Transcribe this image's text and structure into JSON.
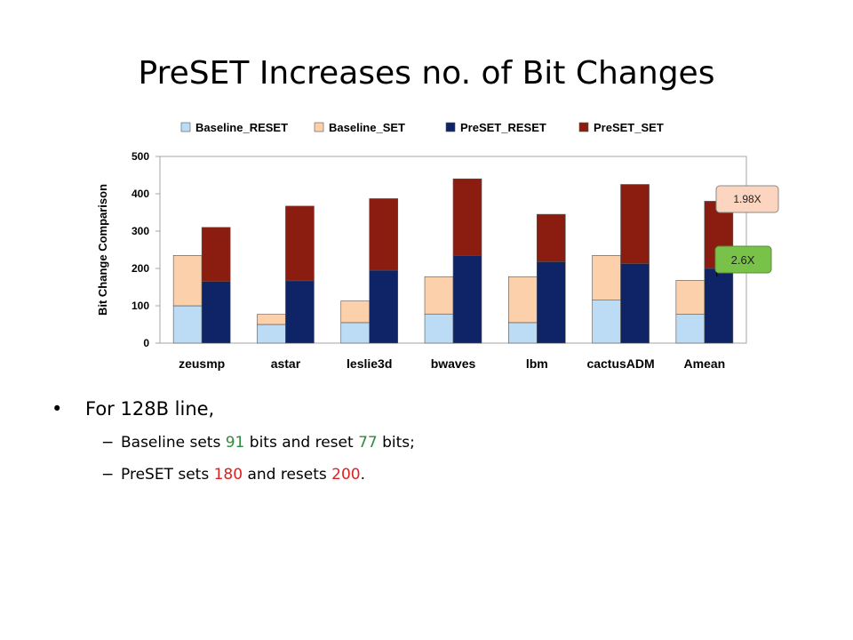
{
  "slide": {
    "title": "PreSET Increases no. of Bit Changes",
    "bullet": "For 128B line,",
    "sub1": {
      "t1": "Baseline sets ",
      "v1": "91",
      "t2": " bits and reset ",
      "v2": "77",
      "t3": " bits;"
    },
    "sub2": {
      "t1": "PreSET sets ",
      "v1": "180",
      "t2": " and resets ",
      "v2": "200",
      "t3": "."
    }
  },
  "colors": {
    "baseline_reset": "#bcdcf5",
    "baseline_set": "#fbd0aa",
    "preset_reset": "#0e2466",
    "preset_set": "#8a1c10",
    "highlight_green": "#2e8b3a",
    "highlight_red": "#e02020",
    "callout_pink": "#fcd5c0",
    "callout_green": "#79c24a"
  },
  "chart_data": {
    "type": "bar",
    "stacked": true,
    "grouped": true,
    "categories": [
      "zeusmp",
      "astar",
      "leslie3d",
      "bwaves",
      "lbm",
      "cactusADM",
      "Amean"
    ],
    "series": [
      {
        "name": "Baseline_RESET",
        "stack": "Baseline",
        "values": [
          100,
          50,
          55,
          78,
          55,
          115,
          77
        ]
      },
      {
        "name": "Baseline_SET",
        "stack": "Baseline",
        "values": [
          135,
          27,
          58,
          100,
          123,
          120,
          91
        ]
      },
      {
        "name": "PreSET_RESET",
        "stack": "PreSET",
        "values": [
          165,
          167,
          195,
          235,
          218,
          213,
          200
        ]
      },
      {
        "name": "PreSET_SET",
        "stack": "PreSET",
        "values": [
          145,
          200,
          192,
          205,
          127,
          212,
          180
        ]
      }
    ],
    "ylabel": "Bit Change Comparison",
    "ylim": [
      0,
      500
    ],
    "yticks": [
      0,
      100,
      200,
      300,
      400,
      500
    ],
    "grid": false,
    "legend_position": "top",
    "annotations": [
      "1.98X",
      "2.6X"
    ]
  }
}
